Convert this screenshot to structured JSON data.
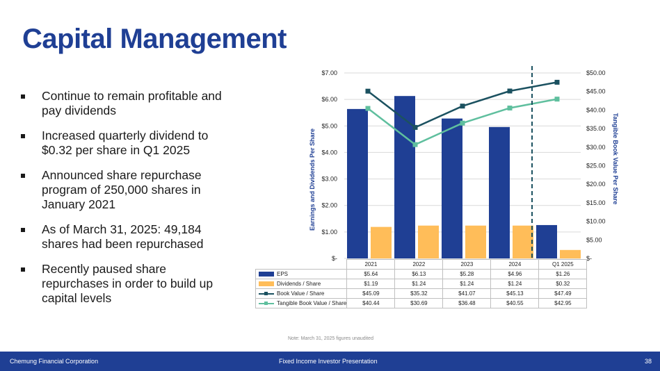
{
  "slide": {
    "title": "Capital Management",
    "bullets": [
      "Continue to remain profitable and pay dividends",
      "Increased quarterly dividend to $0.32 per share in Q1 2025",
      "Announced share repurchase program of 250,000 shares in January 2021",
      "As of March 31, 2025:  49,184 shares had been repurchased",
      "Recently paused share repurchases in order to build up capital levels"
    ],
    "note": "Note: March 31, 2025 figures unaudited",
    "footer_left": "Chemung Financial Corporation",
    "footer_center": "Fixed Income Investor Presentation",
    "page_number": "38"
  },
  "colors": {
    "brand": "#1f3f94",
    "eps": "#1f3f94",
    "dividends": "#ffbd59",
    "book_value": "#1b5160",
    "tangible_book_value": "#5fbf9e"
  },
  "chart_data": {
    "type": "bar+line",
    "categories": [
      "2021",
      "2022",
      "2023",
      "2024",
      "Q1 2025"
    ],
    "series": [
      {
        "name": "EPS",
        "kind": "bar",
        "axis": "left",
        "values": [
          5.64,
          6.13,
          5.28,
          4.96,
          1.26
        ],
        "labels": [
          "$5.64",
          "$6.13",
          "$5.28",
          "$4.96",
          "$1.26"
        ]
      },
      {
        "name": "Dividends / Share",
        "kind": "bar",
        "axis": "left",
        "values": [
          1.19,
          1.24,
          1.24,
          1.24,
          0.32
        ],
        "labels": [
          "$1.19",
          "$1.24",
          "$1.24",
          "$1.24",
          "$0.32"
        ]
      },
      {
        "name": "Book Value / Share",
        "kind": "line",
        "axis": "right",
        "values": [
          45.09,
          35.32,
          41.07,
          45.13,
          47.49
        ],
        "labels": [
          "$45.09",
          "$35.32",
          "$41.07",
          "$45.13",
          "$47.49"
        ]
      },
      {
        "name": "Tangible Book Value / Share",
        "kind": "line",
        "axis": "right",
        "values": [
          40.44,
          30.69,
          36.48,
          40.55,
          42.95
        ],
        "labels": [
          "$40.44",
          "$30.69",
          "$36.48",
          "$40.55",
          "$42.95"
        ]
      }
    ],
    "left_axis": {
      "label": "Earnings and Dividends Per Share",
      "min": 0,
      "max": 7,
      "ticks": [
        "$-",
        "$1.00",
        "$2.00",
        "$3.00",
        "$4.00",
        "$5.00",
        "$6.00",
        "$7.00"
      ]
    },
    "right_axis": {
      "label": "Tangible Book Value Per Share",
      "min": 0,
      "max": 50,
      "ticks": [
        "$-",
        "$5.00",
        "$10.00",
        "$15.00",
        "$20.00",
        "$25.00",
        "$30.00",
        "$35.00",
        "$40.00",
        "$45.00",
        "$50.00"
      ]
    },
    "divider_after_category": "2024"
  }
}
